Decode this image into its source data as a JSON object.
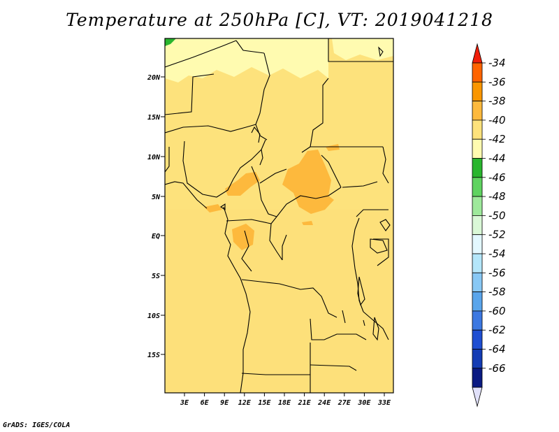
{
  "title": "Temperature at 250hPa [C], VT: 2019041218",
  "credit": "GrADS: IGES/COLA",
  "map": {
    "lat_labels": [
      "20N",
      "15N",
      "10N",
      "5N",
      "EQ",
      "5S",
      "10S",
      "15S"
    ],
    "lon_labels": [
      "3E",
      "6E",
      "9E",
      "12E",
      "15E",
      "18E",
      "21E",
      "24E",
      "27E",
      "30E",
      "33E"
    ]
  },
  "colorbar": {
    "labels": [
      "-34",
      "-36",
      "-38",
      "-40",
      "-42",
      "-44",
      "-46",
      "-48",
      "-50",
      "-52",
      "-54",
      "-56",
      "-58",
      "-60",
      "-62",
      "-64",
      "-66"
    ],
    "colors": [
      "#f01e0a",
      "#ff6400",
      "#fa9600",
      "#fdb93d",
      "#fde27c",
      "#fffbb0",
      "#29b52e",
      "#5fd360",
      "#9ee99b",
      "#daf8d7",
      "#e3f8ff",
      "#b4e6fa",
      "#88c8f5",
      "#5aa5eb",
      "#3c78e1",
      "#1e4ed2",
      "#143cb4",
      "#0a1a82",
      "#e1e1fa"
    ]
  }
}
